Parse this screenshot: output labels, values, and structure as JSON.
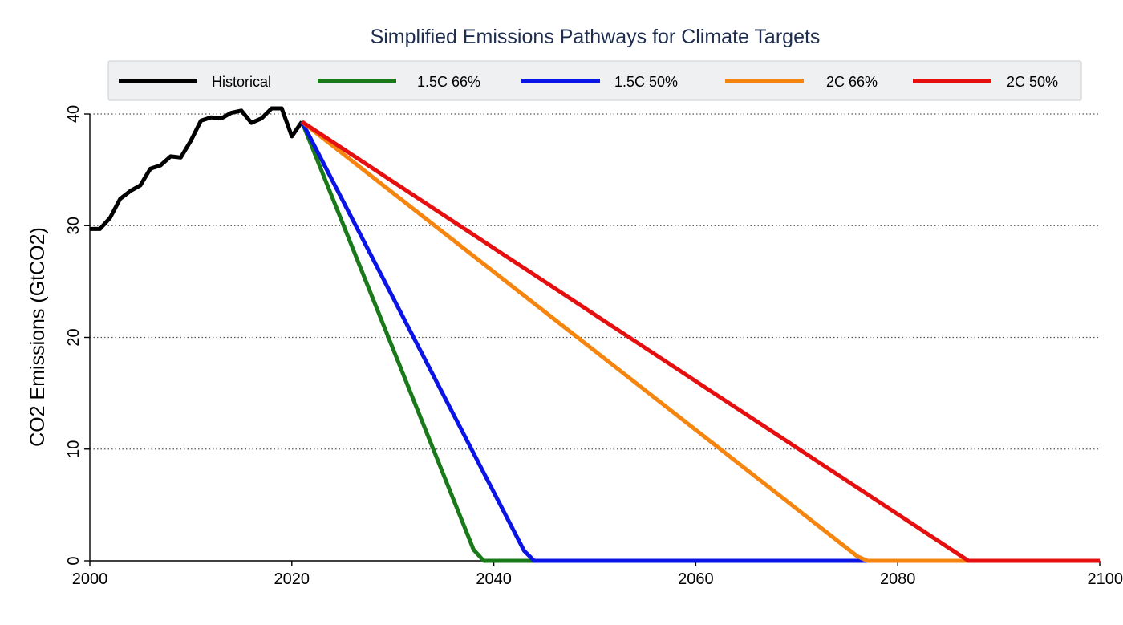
{
  "chart_data": {
    "type": "line",
    "title": "Simplified Emissions Pathways for Climate Targets",
    "xlabel": "",
    "ylabel": "CO2 Emissions (GtCO2)",
    "xlim": [
      2000,
      2100
    ],
    "ylim": [
      0,
      40
    ],
    "xticks": [
      2000,
      2020,
      2040,
      2060,
      2080,
      2100
    ],
    "yticks": [
      0,
      10,
      20,
      30,
      40
    ],
    "grid": "horizontal dotted",
    "legend_position": "top",
    "colors": {
      "title": "#1f2d4e",
      "legend_background": "#eef0f2",
      "legend_border": "#c8ccd2",
      "grid": "#555555",
      "axis": "#000000"
    },
    "series": [
      {
        "name": "Historical",
        "color": "#000000",
        "points": [
          [
            2000,
            29.7
          ],
          [
            2001,
            29.7
          ],
          [
            2002,
            30.7
          ],
          [
            2003,
            32.4
          ],
          [
            2004,
            33.1
          ],
          [
            2005,
            33.6
          ],
          [
            2006,
            35.1
          ],
          [
            2007,
            35.4
          ],
          [
            2008,
            36.2
          ],
          [
            2009,
            36.1
          ],
          [
            2010,
            37.6
          ],
          [
            2011,
            39.4
          ],
          [
            2012,
            39.7
          ],
          [
            2013,
            39.6
          ],
          [
            2014,
            40.1
          ],
          [
            2015,
            40.3
          ],
          [
            2016,
            39.2
          ],
          [
            2017,
            39.6
          ],
          [
            2018,
            40.5
          ],
          [
            2019,
            40.5
          ],
          [
            2020,
            38.0
          ],
          [
            2021,
            39.3
          ]
        ]
      },
      {
        "name": "1.5C 66%",
        "color": "#1a7a1a",
        "points": [
          [
            2021,
            39.3
          ],
          [
            2038,
            1.0
          ],
          [
            2039,
            0
          ],
          [
            2100,
            0
          ]
        ]
      },
      {
        "name": "1.5C 50%",
        "color": "#0a14e6",
        "points": [
          [
            2021,
            39.3
          ],
          [
            2043,
            0.9
          ],
          [
            2044,
            0
          ],
          [
            2100,
            0
          ]
        ]
      },
      {
        "name": "2C 66%",
        "color": "#f5850f",
        "points": [
          [
            2021,
            39.3
          ],
          [
            2076,
            0.4
          ],
          [
            2077,
            0
          ],
          [
            2100,
            0
          ]
        ]
      },
      {
        "name": "2C 50%",
        "color": "#e60f0f",
        "points": [
          [
            2021,
            39.3
          ],
          [
            2087,
            0
          ],
          [
            2100,
            0
          ]
        ]
      }
    ]
  }
}
